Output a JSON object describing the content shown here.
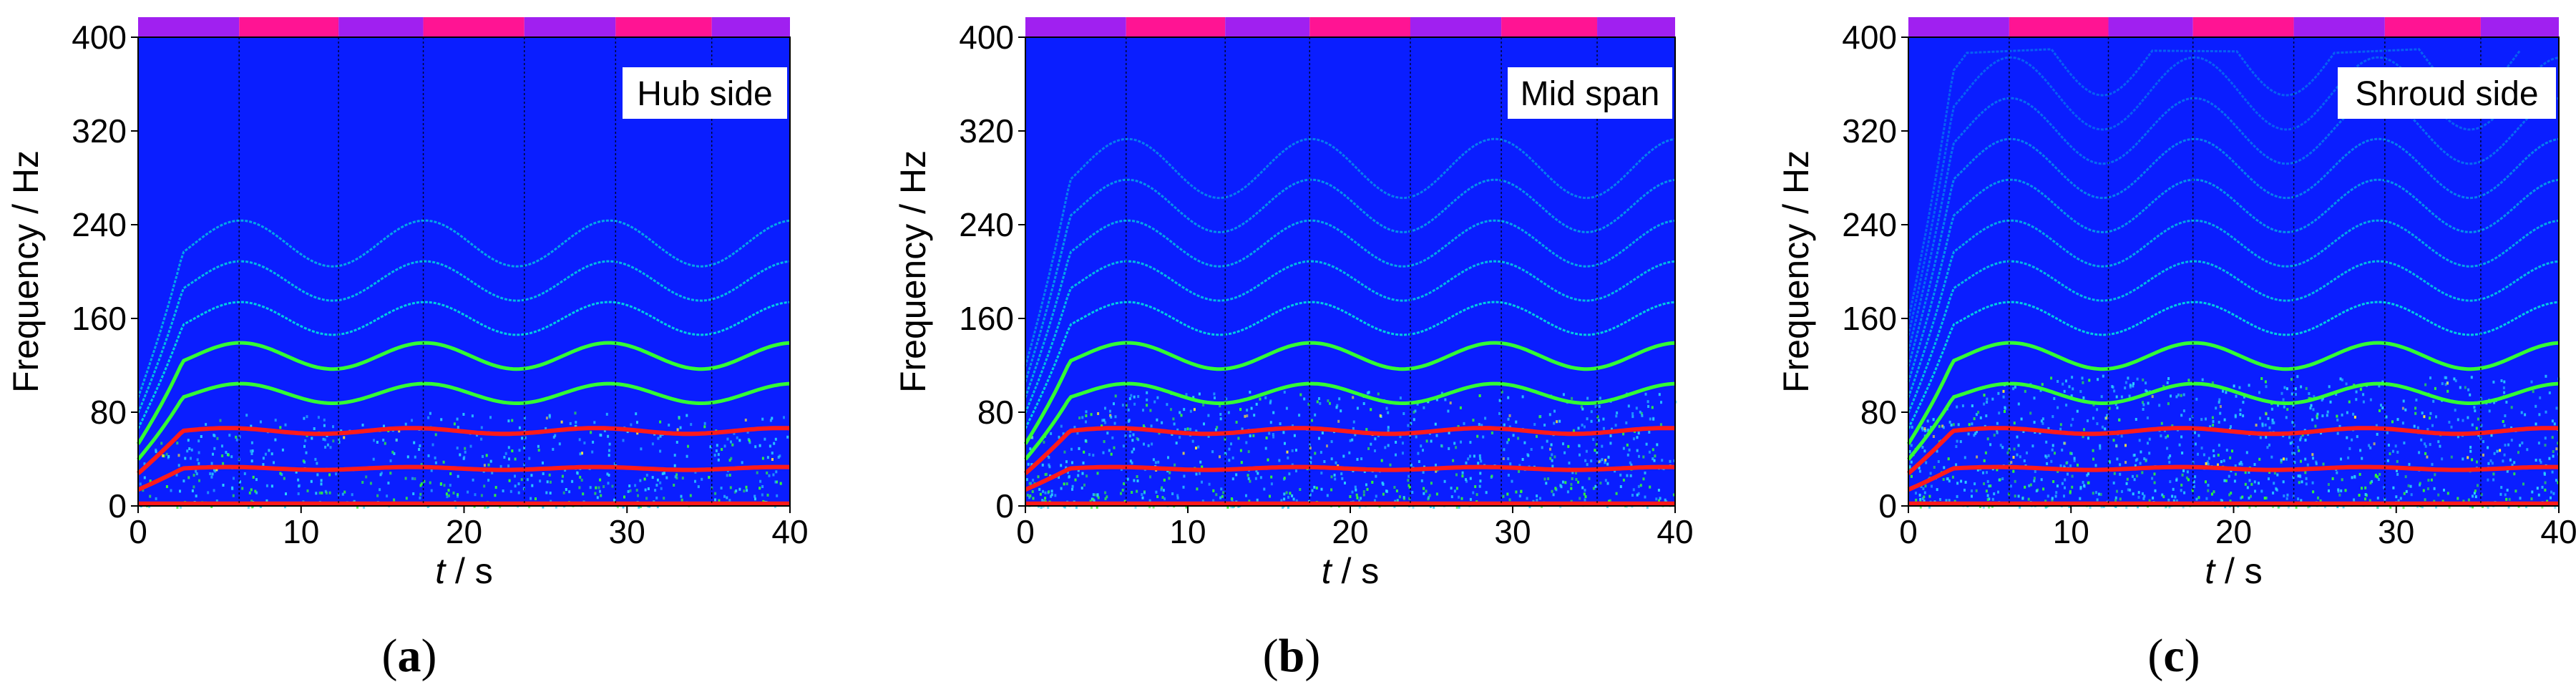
{
  "chart_data": [
    {
      "type": "heatmap",
      "panel_label": "(a)",
      "annotation": "Hub side",
      "xlabel_var": "t",
      "xlabel_unit": " / s",
      "ylabel": "Frequency / Hz",
      "xlim": [
        0,
        40
      ],
      "ylim": [
        0,
        400
      ],
      "xticks": [
        0,
        10,
        20,
        30,
        40
      ],
      "yticks": [
        0,
        80,
        160,
        240,
        320,
        400
      ],
      "phase_boundaries": [
        0,
        6.2,
        12.3,
        17.5,
        23.7,
        29.3,
        35.2,
        40
      ],
      "harmonic_base_hz": 32,
      "harmonic_modulation": 0.11,
      "modulation_period_s": 11.3,
      "harmonic_count": 7,
      "noise_level": 0.45
    },
    {
      "type": "heatmap",
      "panel_label": "(b)",
      "annotation": "Mid span",
      "xlabel_var": "t",
      "xlabel_unit": " / s",
      "ylabel": "Frequency / Hz",
      "xlim": [
        0,
        40
      ],
      "ylim": [
        0,
        400
      ],
      "xticks": [
        0,
        10,
        20,
        30,
        40
      ],
      "yticks": [
        0,
        80,
        160,
        240,
        320,
        400
      ],
      "phase_boundaries": [
        0,
        6.2,
        12.3,
        17.5,
        23.7,
        29.3,
        35.2,
        40
      ],
      "harmonic_base_hz": 32,
      "harmonic_modulation": 0.11,
      "modulation_period_s": 11.3,
      "harmonic_count": 9,
      "noise_level": 0.65
    },
    {
      "type": "heatmap",
      "panel_label": "(c)",
      "annotation": "Shroud side",
      "xlabel_var": "t",
      "xlabel_unit": " / s",
      "ylabel": "Frequency / Hz",
      "xlim": [
        0,
        40
      ],
      "ylim": [
        0,
        400
      ],
      "xticks": [
        0,
        10,
        20,
        30,
        40
      ],
      "yticks": [
        0,
        80,
        160,
        240,
        320,
        400
      ],
      "phase_boundaries": [
        0,
        6.2,
        12.3,
        17.5,
        23.7,
        29.3,
        35.2,
        40
      ],
      "harmonic_base_hz": 32,
      "harmonic_modulation": 0.11,
      "modulation_period_s": 11.3,
      "harmonic_count": 12,
      "noise_level": 0.8
    }
  ],
  "colors": {
    "background": "#0a1eff",
    "phase_a": "#a020f0",
    "phase_b": "#ff1493",
    "harmonic_low": "#ff1a1a",
    "harmonic_mid": "#33ff33",
    "harmonic_high": "#00e0e0",
    "noise": "#2ad0ff",
    "boundary": "#000000"
  }
}
